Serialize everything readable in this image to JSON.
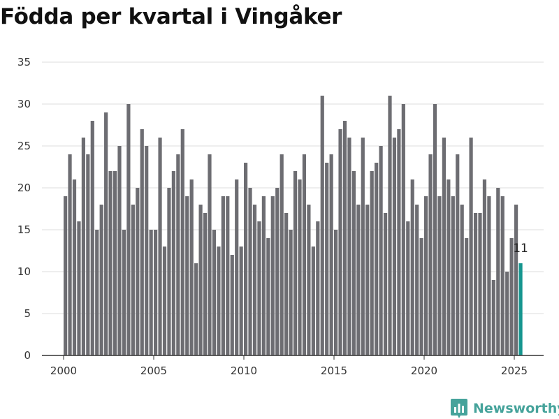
{
  "chart_data": {
    "type": "bar",
    "title": "Födda per kvartal i Vingåker",
    "xlabel": "",
    "ylabel": "",
    "ylim": [
      0,
      35
    ],
    "yticks": [
      0,
      5,
      10,
      15,
      20,
      25,
      30,
      35
    ],
    "xticks": [
      2000,
      2005,
      2010,
      2015,
      2020,
      2025
    ],
    "grid": true,
    "legend": "none",
    "bar_color": "#6d6d72",
    "highlight_color": "#16968f",
    "x_start": "2000 Q1",
    "x_end": "2025 Q2",
    "values": [
      19,
      24,
      21,
      16,
      26,
      24,
      28,
      15,
      18,
      29,
      22,
      22,
      25,
      15,
      30,
      18,
      20,
      27,
      25,
      15,
      15,
      26,
      13,
      20,
      22,
      24,
      27,
      19,
      21,
      11,
      18,
      17,
      24,
      15,
      13,
      19,
      19,
      12,
      21,
      13,
      23,
      20,
      18,
      16,
      19,
      14,
      19,
      20,
      24,
      17,
      15,
      22,
      21,
      24,
      18,
      13,
      16,
      31,
      23,
      24,
      15,
      27,
      28,
      26,
      22,
      18,
      26,
      18,
      22,
      23,
      25,
      17,
      31,
      26,
      27,
      30,
      16,
      21,
      18,
      14,
      19,
      24,
      30,
      19,
      26,
      21,
      19,
      24,
      18,
      14,
      26,
      17,
      17,
      21,
      19,
      9,
      20,
      19,
      10,
      14,
      18,
      11
    ],
    "highlight": {
      "x": "2025 Q2",
      "value": 11,
      "label": "11"
    }
  },
  "brand": {
    "name": "Newsworthy",
    "icon": "bar-chart-logo-icon"
  }
}
